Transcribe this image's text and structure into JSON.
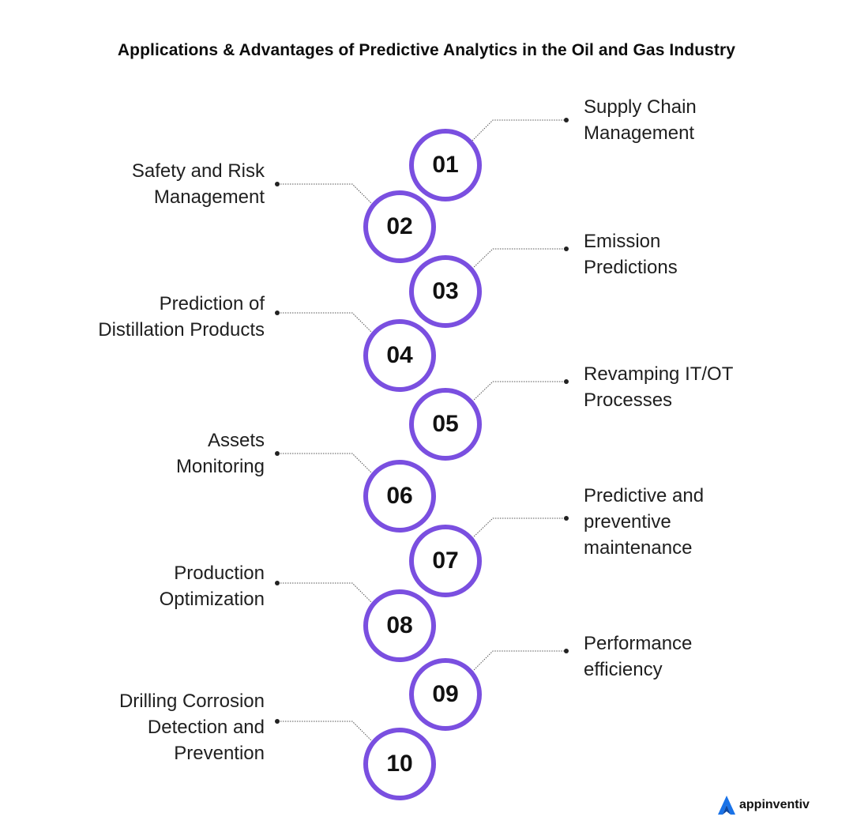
{
  "title": "Applications & Advantages of Predictive Analytics in the Oil and Gas Industry",
  "accent_color": "#7a4fe0",
  "items": [
    {
      "number": "01",
      "label_lines": [
        "Supply Chain",
        "Management"
      ],
      "side": "right"
    },
    {
      "number": "02",
      "label_lines": [
        "Safety and Risk",
        "Management"
      ],
      "side": "left"
    },
    {
      "number": "03",
      "label_lines": [
        "Emission",
        "Predictions"
      ],
      "side": "right"
    },
    {
      "number": "04",
      "label_lines": [
        "Prediction of",
        "Distillation Products"
      ],
      "side": "left"
    },
    {
      "number": "05",
      "label_lines": [
        "Revamping IT/OT",
        "Processes"
      ],
      "side": "right"
    },
    {
      "number": "06",
      "label_lines": [
        "Assets",
        "Monitoring"
      ],
      "side": "left"
    },
    {
      "number": "07",
      "label_lines": [
        "Predictive and",
        "preventive",
        "maintenance"
      ],
      "side": "right"
    },
    {
      "number": "08",
      "label_lines": [
        "Production",
        "Optimization"
      ],
      "side": "left"
    },
    {
      "number": "09",
      "label_lines": [
        "Performance",
        "efficiency"
      ],
      "side": "right"
    },
    {
      "number": "10",
      "label_lines": [
        "Drilling Corrosion",
        "Detection and",
        "Prevention"
      ],
      "side": "left"
    }
  ],
  "brand": {
    "name": "appinventiv",
    "icon": "appinventiv-logo-icon"
  }
}
